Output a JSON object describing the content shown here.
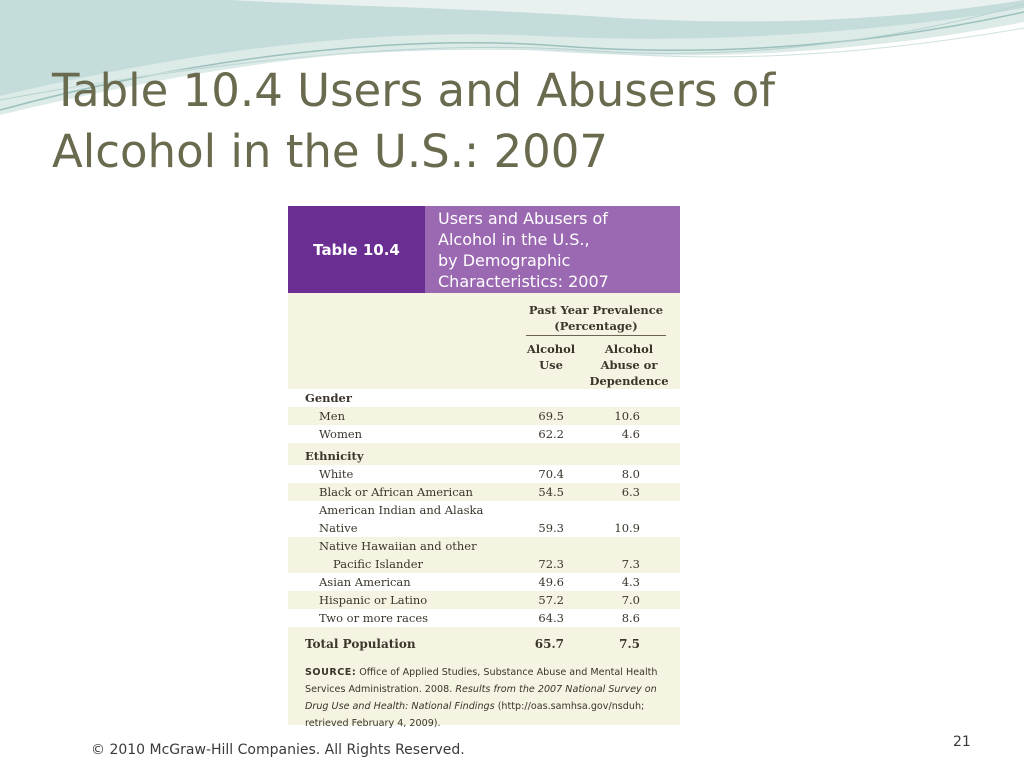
{
  "slide": {
    "title_lines": [
      "Table 10.4 Users and Abusers of",
      "Alcohol in the U.S.: 2007"
    ],
    "footer": "© 2010 McGraw-Hill Companies. All Rights Reserved.",
    "page_number": "21"
  },
  "colors": {
    "title": "#6a6a4e",
    "label_bg": "#6a2d91",
    "caption_bg": "#9b68b2",
    "table_bg": "#f5f3e1",
    "wave": "#a8c8c6"
  },
  "table": {
    "label": "Table 10.4",
    "caption_lines": [
      "Users and Abusers of",
      "Alcohol in the U.S.,",
      "by Demographic",
      "Characteristics: 2007"
    ],
    "group_header": [
      "Past Year Prevalence",
      "(Percentage)"
    ],
    "col1_header": [
      "Alcohol",
      "Use"
    ],
    "col2_header": [
      "Alcohol",
      "Abuse or",
      "Dependence"
    ],
    "gender": {
      "label": "Gender",
      "rows": [
        {
          "name": "Men",
          "use": "69.5",
          "abuse": "10.6"
        },
        {
          "name": "Women",
          "use": "62.2",
          "abuse": "4.6"
        }
      ]
    },
    "ethnicity": {
      "label": "Ethnicity",
      "rows": [
        {
          "name": "White",
          "use": "70.4",
          "abuse": "8.0"
        },
        {
          "name": "Black or African American",
          "use": "54.5",
          "abuse": "6.3"
        },
        {
          "name": "American Indian and Alaska Native",
          "use": "59.3",
          "abuse": "10.9"
        },
        {
          "name_line1": "Native Hawaiian and other",
          "name_line2": "Pacific Islander",
          "use": "72.3",
          "abuse": "7.3"
        },
        {
          "name": "Asian American",
          "use": "49.6",
          "abuse": "4.3"
        },
        {
          "name": "Hispanic or Latino",
          "use": "57.2",
          "abuse": "7.0"
        },
        {
          "name": "Two or more races",
          "use": "64.3",
          "abuse": "8.6"
        }
      ]
    },
    "total": {
      "name": "Total Population",
      "use": "65.7",
      "abuse": "7.5"
    },
    "source": {
      "label": "SOURCE:",
      "text1": "Office of Applied Studies, Substance Abuse and Mental Health Services Administration. 2008.",
      "italic": "Results from the 2007 National Survey on Drug Use and Health: National Findings",
      "text2": "(http://oas.samhsa.gov/nsduh; retrieved February 4, 2009)."
    }
  }
}
